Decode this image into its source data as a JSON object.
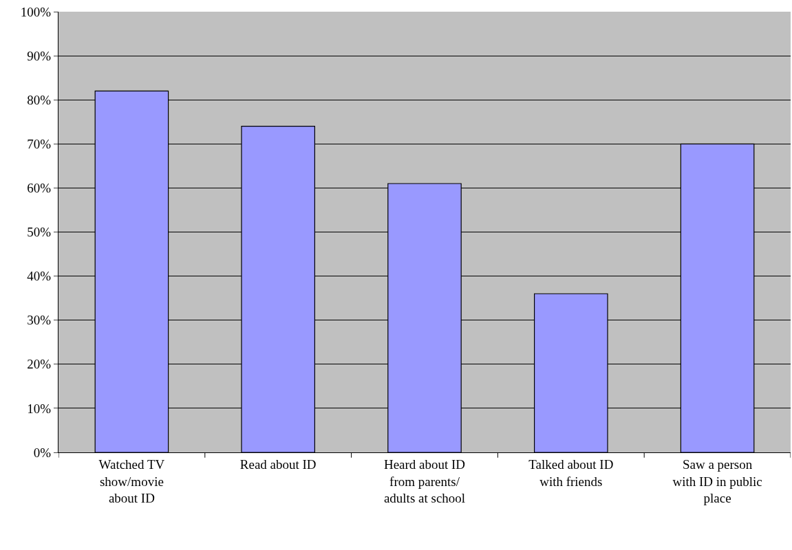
{
  "chart_data": {
    "type": "bar",
    "categories": [
      "Watched TV\nshow/movie\nabout ID",
      "Read about ID",
      "Heard about ID\nfrom parents/\nadults at school",
      "Talked about ID\nwith friends",
      "Saw a person\nwith ID in public\nplace"
    ],
    "values": [
      82,
      74,
      61,
      36,
      70
    ],
    "color": "#9999ff",
    "ylim": [
      0,
      100
    ],
    "yticks": [
      {
        "value": 0,
        "label": "0%"
      },
      {
        "value": 10,
        "label": "10%"
      },
      {
        "value": 20,
        "label": "20%"
      },
      {
        "value": 30,
        "label": "30%"
      },
      {
        "value": 40,
        "label": "40%"
      },
      {
        "value": 50,
        "label": "50%"
      },
      {
        "value": 60,
        "label": "60%"
      },
      {
        "value": 70,
        "label": "70%"
      },
      {
        "value": 80,
        "label": "80%"
      },
      {
        "value": 90,
        "label": "90%"
      },
      {
        "value": 100,
        "label": "100%"
      }
    ],
    "grid": "y"
  }
}
